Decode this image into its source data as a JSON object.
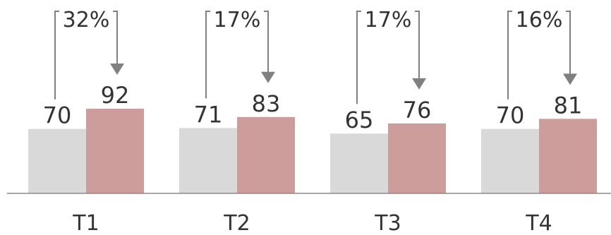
{
  "chart_data": {
    "type": "bar",
    "categories": [
      "T1",
      "T2",
      "T3",
      "T4"
    ],
    "series": [
      {
        "color": "#d9d9d9",
        "values": [
          70,
          71,
          65,
          70
        ]
      },
      {
        "color": "#cc9d9b",
        "values": [
          92,
          83,
          76,
          81
        ]
      }
    ],
    "changes": [
      "32%",
      "17%",
      "17%",
      "16%"
    ],
    "title": "",
    "xlabel": "",
    "ylabel": "",
    "ylim": [
      0,
      150
    ],
    "grid": false,
    "legend": "none",
    "colors": {
      "annotation": "#808080",
      "axis": "#8c8c8c",
      "text": "#333333"
    }
  }
}
